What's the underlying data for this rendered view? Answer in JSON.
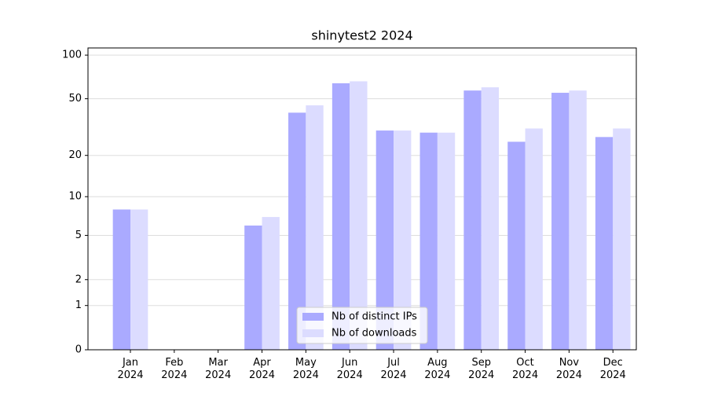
{
  "chart_data": {
    "type": "bar",
    "title": "shinytest2 2024",
    "categories": [
      "Jan\n2024",
      "Feb\n2024",
      "Mar\n2024",
      "Apr\n2024",
      "May\n2024",
      "Jun\n2024",
      "Jul\n2024",
      "Aug\n2024",
      "Sep\n2024",
      "Oct\n2024",
      "Nov\n2024",
      "Dec\n2024"
    ],
    "series": [
      {
        "name": "Nb of distinct IPs",
        "color": "#aaaaff",
        "values": [
          8,
          0,
          0,
          6,
          40,
          64,
          30,
          29,
          57,
          25,
          55,
          27
        ]
      },
      {
        "name": "Nb of downloads",
        "color": "#dcdcff",
        "values": [
          8,
          0,
          0,
          7,
          45,
          66,
          30,
          29,
          60,
          31,
          57,
          31
        ]
      }
    ],
    "yscale": "log1p",
    "ylim": [
      0,
      112
    ],
    "yticks": [
      0,
      1,
      2,
      5,
      10,
      20,
      50,
      100
    ],
    "grid": true,
    "legend": "lower center"
  }
}
